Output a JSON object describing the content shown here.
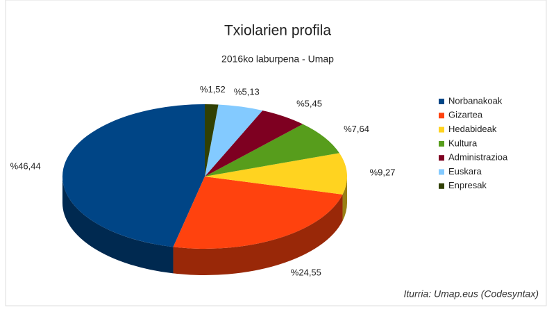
{
  "chart_data": {
    "type": "pie",
    "title": "Txiolarien profila",
    "subtitle": "2016ko laburpena - Umap",
    "categories": [
      "Norbanakoak",
      "Gizartea",
      "Hedabideak",
      "Kultura",
      "Administrazioa",
      "Euskara",
      "Enpresak"
    ],
    "values": [
      46.44,
      24.55,
      9.27,
      7.64,
      5.45,
      5.13,
      1.52
    ],
    "value_labels": [
      "%46,44",
      "%24,55",
      "%9,27",
      "%7,64",
      "%5,45",
      "%5,13",
      "%1,52"
    ],
    "colors": [
      "#004586",
      "#ff420e",
      "#ffd320",
      "#579d1c",
      "#7e0021",
      "#83caff",
      "#314004"
    ],
    "legend": "right",
    "annotation": "Iturria: Umap.eus (Codesyntax)"
  }
}
